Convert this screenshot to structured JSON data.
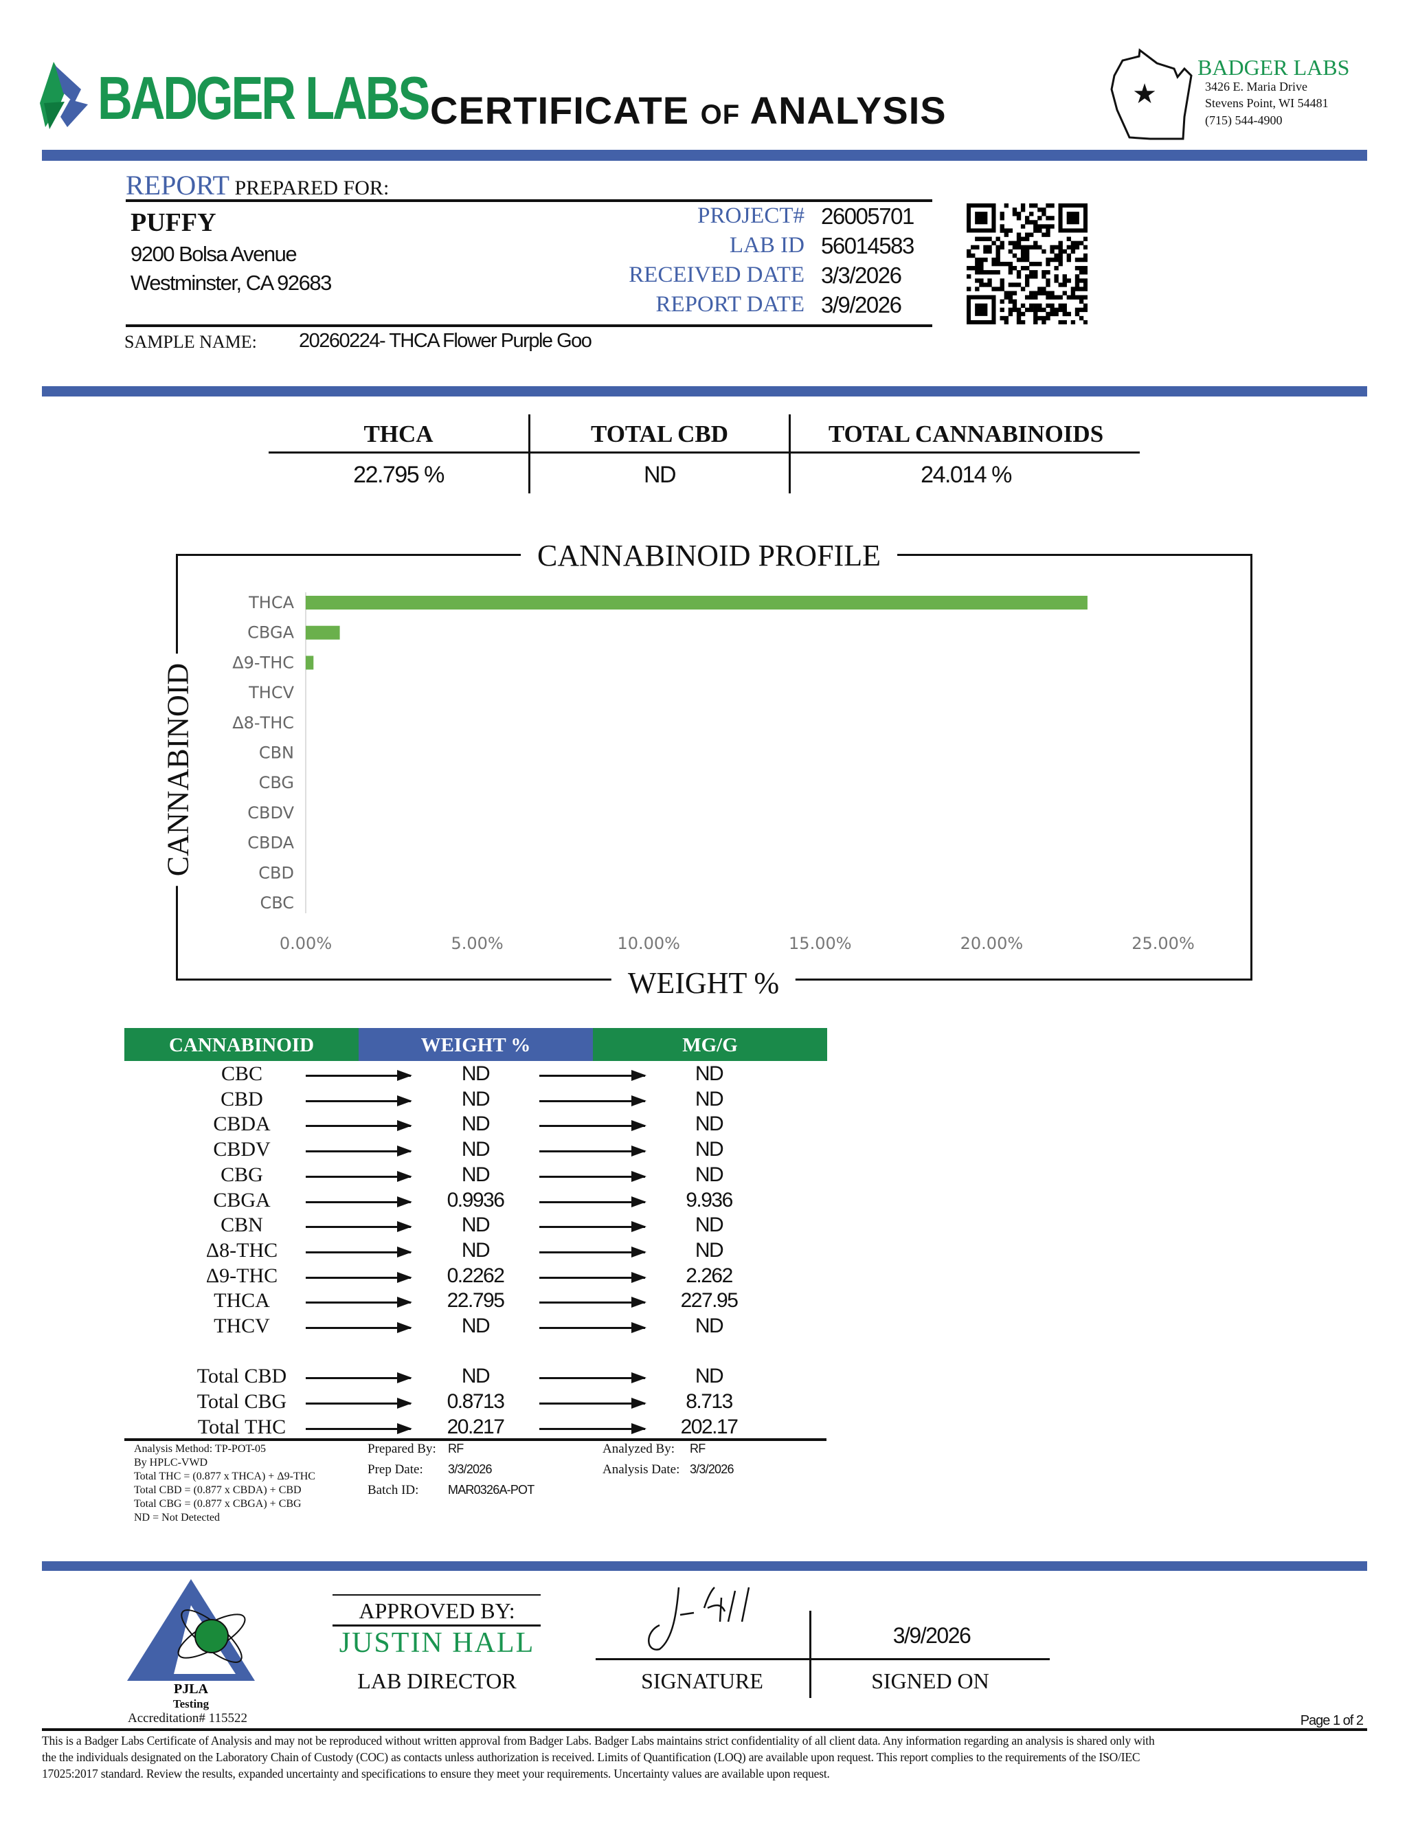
{
  "header": {
    "logo_text": "BADGER LABS",
    "title_part1": "CERTIFICATE",
    "title_of": "OF",
    "title_part2": "ANALYSIS",
    "lab_name": "BADGER LABS",
    "address1": "3426 E. Maria Drive",
    "address2": "Stevens Point, WI 54481",
    "phone": "(715) 544-4900"
  },
  "client": {
    "report_word": "REPORT",
    "prepared_for": "PREPARED FOR:",
    "name": "PUFFY",
    "street": "9200 Bolsa Avenue",
    "city": "Westminster, CA 92683"
  },
  "details": [
    {
      "label": "PROJECT#",
      "value": "26005701"
    },
    {
      "label": "LAB ID",
      "value": "56014583"
    },
    {
      "label": "RECEIVED DATE",
      "value": "3/3/2026"
    },
    {
      "label": "REPORT DATE",
      "value": "3/9/2026"
    }
  ],
  "sample": {
    "label": "SAMPLE NAME:",
    "value": "20260224- THCA Flower Purple Goo"
  },
  "summary": [
    {
      "label": "THCA",
      "value": "22.795 %"
    },
    {
      "label": "TOTAL CBD",
      "value": "ND"
    },
    {
      "label": "TOTAL CANNABINOIDS",
      "value": "24.014 %"
    }
  ],
  "chart_data": {
    "type": "bar",
    "orientation": "horizontal",
    "title": "CANNABINOID PROFILE",
    "xlabel": "WEIGHT %",
    "ylabel": "CANNABINOID",
    "categories": [
      "THCA",
      "CBGA",
      "Δ9-THC",
      "THCV",
      "Δ8-THC",
      "CBN",
      "CBG",
      "CBDV",
      "CBDA",
      "CBD",
      "CBC"
    ],
    "values": [
      22.795,
      0.9936,
      0.2262,
      0,
      0,
      0,
      0,
      0,
      0,
      0,
      0
    ],
    "xlim": [
      0,
      25
    ],
    "xticks": [
      "0.00%",
      "5.00%",
      "10.00%",
      "15.00%",
      "20.00%",
      "25.00%"
    ],
    "grid": false,
    "bar_color": "#6ab04c"
  },
  "table": {
    "headers": [
      "CANNABINOID",
      "WEIGHT %",
      "MG/G"
    ],
    "header_colors": [
      "#1a8a4a",
      "#4361a8",
      "#1a8a4a"
    ],
    "rows": [
      [
        "CBC",
        "ND",
        "ND"
      ],
      [
        "CBD",
        "ND",
        "ND"
      ],
      [
        "CBDA",
        "ND",
        "ND"
      ],
      [
        "CBDV",
        "ND",
        "ND"
      ],
      [
        "CBG",
        "ND",
        "ND"
      ],
      [
        "CBGA",
        "0.9936",
        "9.936"
      ],
      [
        "CBN",
        "ND",
        "ND"
      ],
      [
        "Δ8-THC",
        "ND",
        "ND"
      ],
      [
        "Δ9-THC",
        "0.2262",
        "2.262"
      ],
      [
        "THCA",
        "22.795",
        "227.95"
      ],
      [
        "THCV",
        "ND",
        "ND"
      ]
    ],
    "totals": [
      [
        "Total CBD",
        "ND",
        "ND"
      ],
      [
        "Total CBG",
        "0.8713",
        "8.713"
      ],
      [
        "Total THC",
        "20.217",
        "202.17"
      ]
    ]
  },
  "notes": [
    "Analysis Method: TP-POT-05",
    "By HPLC-VWD",
    "Total THC = (0.877 x  THCA) + Δ9-THC",
    "Total CBD = (0.877 x  CBDA) + CBD",
    "Total CBG = (0.877 x  CBGA) + CBG",
    "ND = Not Detected"
  ],
  "prep": [
    {
      "label": "Prepared By:",
      "value": "RF"
    },
    {
      "label": "Prep Date:",
      "value": "3/3/2026"
    },
    {
      "label": "Batch ID:",
      "value": "MAR0326A-POT"
    }
  ],
  "analysis": [
    {
      "label": "Analyzed By:",
      "value": "RF"
    },
    {
      "label": "Analysis Date:",
      "value": "3/3/2026"
    }
  ],
  "approval": {
    "approved_by": "APPROVED BY:",
    "name": "JUSTIN HALL",
    "role": "LAB DIRECTOR",
    "signature_label": "SIGNATURE",
    "signed_on_label": "SIGNED ON",
    "signed_date": "3/9/2026"
  },
  "accreditation": {
    "logo_text": "PJLA",
    "logo_sub": "Testing",
    "number": "Accreditation# 115522"
  },
  "page": "Page 1 of 2",
  "footer": [
    "This is a Badger Labs Certificate of Analysis and may not be reproduced without written approval from Badger Labs. Badger Labs maintains strict confidentiality of all client data. Any information regarding an analysis is shared only with",
    "the the individuals designated on the Laboratory Chain of Custody (COC) as contacts unless authorization is received. Limits of Quantification (LOQ) are available upon request. This report complies to the requirements of the ISO/IEC",
    "17025:2017 standard. Review the results, expanded uncertainty and specifications to ensure they meet your requirements. Uncertainty values are available upon request."
  ]
}
